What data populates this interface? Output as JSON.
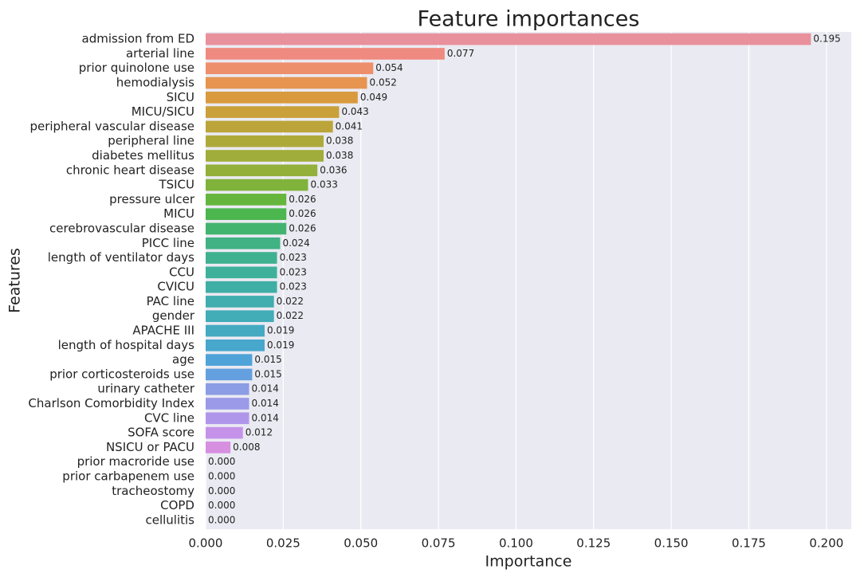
{
  "chart_data": {
    "type": "barh",
    "title": "Feature importances",
    "xlabel": "Importance",
    "ylabel": "Features",
    "categories": [
      "admission from ED",
      "arterial line",
      "prior quinolone use",
      "hemodialysis",
      "SICU",
      "MICU/SICU",
      "peripheral vascular disease",
      "peripheral line",
      "diabetes mellitus",
      "chronic heart disease",
      "TSICU",
      "pressure ulcer",
      "MICU",
      "cerebrovascular disease",
      "PICC line",
      "length of ventilator days",
      "CCU",
      "CVICU",
      "PAC line",
      "gender",
      "APACHE III",
      "length of hospital days",
      "age",
      "prior corticosteroids use",
      "urinary catheter",
      "Charlson Comorbidity Index",
      "CVC line",
      "SOFA score",
      "NSICU or PACU",
      "prior macroride use",
      "prior carbapenem use",
      "tracheostomy",
      "COPD",
      "cellulitis"
    ],
    "values": [
      0.195,
      0.077,
      0.054,
      0.052,
      0.049,
      0.043,
      0.041,
      0.038,
      0.038,
      0.036,
      0.033,
      0.026,
      0.026,
      0.026,
      0.024,
      0.023,
      0.023,
      0.023,
      0.022,
      0.022,
      0.019,
      0.019,
      0.015,
      0.015,
      0.014,
      0.014,
      0.014,
      0.012,
      0.008,
      0,
      0,
      0,
      0,
      0
    ],
    "value_labels": [
      "0.195",
      "0.077",
      "0.054",
      "0.052",
      "0.049",
      "0.043",
      "0.041",
      "0.038",
      "0.038",
      "0.036",
      "0.033",
      "0.026",
      "0.026",
      "0.026",
      "0.024",
      "0.023",
      "0.023",
      "0.023",
      "0.022",
      "0.022",
      "0.019",
      "0.019",
      "0.015",
      "0.015",
      "0.014",
      "0.014",
      "0.014",
      "0.012",
      "0.008",
      "0.000",
      "0.000",
      "0.000",
      "0.000",
      "0.000"
    ],
    "colors": [
      "#e8909b",
      "#ef8a80",
      "#ee8f6c",
      "#e69450",
      "#d99a3d",
      "#c9a03a",
      "#bba53a",
      "#aeaa3a",
      "#a0ad3a",
      "#92b03a",
      "#7fb33b",
      "#66b63e",
      "#4cb64f",
      "#42b46f",
      "#40b283",
      "#3fb190",
      "#3fb09a",
      "#3faea4",
      "#40adae",
      "#42acb7",
      "#44aac1",
      "#47a7cc",
      "#4fa3d8",
      "#64a0e0",
      "#8b9de4",
      "#9a9ae8",
      "#b096ea",
      "#c493e9",
      "#d78fe0",
      "#e48cd2",
      "#ea8bc2",
      "#ec8cb2",
      "#ed8da4",
      "#ee8e98"
    ],
    "xlim": [
      0,
      0.208
    ],
    "xticks": [
      {
        "value": 0,
        "label": "0.000"
      },
      {
        "value": 0.025,
        "label": "0.025"
      },
      {
        "value": 0.05,
        "label": "0.050"
      },
      {
        "value": 0.075,
        "label": "0.075"
      },
      {
        "value": 0.1,
        "label": "0.100"
      },
      {
        "value": 0.125,
        "label": "0.125"
      },
      {
        "value": 0.15,
        "label": "0.150"
      },
      {
        "value": 0.175,
        "label": "0.175"
      },
      {
        "value": 0.2,
        "label": "0.200"
      }
    ],
    "grid": true
  }
}
